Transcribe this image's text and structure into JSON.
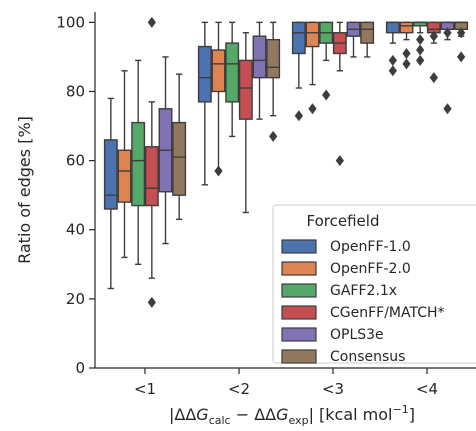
{
  "chart_data": {
    "type": "box",
    "xlabel_parts": {
      "pre": "|ΔΔ",
      "g": "G",
      "calc": "calc",
      "mid": " − ΔΔ",
      "exp": "exp",
      "post": "| [kcal mol",
      "sup": "−1",
      "close": "]"
    },
    "ylabel": "Ratio of edges [%]",
    "ylim": [
      0,
      103
    ],
    "yticks": [
      0,
      20,
      40,
      60,
      80,
      100
    ],
    "categories": [
      "<1",
      "<2",
      "<3",
      "<4"
    ],
    "legend": {
      "title": "Forcefield",
      "placement": "lower-right"
    },
    "series": [
      {
        "name": "OpenFF-1.0",
        "color": "#4c72b0",
        "boxes": [
          {
            "wlo": 23,
            "q1": 46,
            "med": 50,
            "q3": 66,
            "whi": 78,
            "fliers": []
          },
          {
            "wlo": 53,
            "q1": 77,
            "med": 84,
            "q3": 93,
            "whi": 100,
            "fliers": []
          },
          {
            "wlo": 81,
            "q1": 91,
            "med": 97,
            "q3": 100,
            "whi": 100,
            "fliers": [
              73
            ]
          },
          {
            "wlo": 94,
            "q1": 97,
            "med": 100,
            "q3": 100,
            "whi": 100,
            "fliers": [
              86,
              89
            ]
          }
        ]
      },
      {
        "name": "OpenFF-2.0",
        "color": "#dd8452",
        "boxes": [
          {
            "wlo": 32,
            "q1": 48,
            "med": 57,
            "q3": 63,
            "whi": 86,
            "fliers": []
          },
          {
            "wlo": 57,
            "q1": 80,
            "med": 88,
            "q3": 92,
            "whi": 100,
            "fliers": [
              57
            ]
          },
          {
            "wlo": 82,
            "q1": 93,
            "med": 97,
            "q3": 100,
            "whi": 100,
            "fliers": [
              75
            ]
          },
          {
            "wlo": 95,
            "q1": 97,
            "med": 99,
            "q3": 100,
            "whi": 100,
            "fliers": [
              88,
              91
            ]
          }
        ]
      },
      {
        "name": "GAFF2.1x",
        "color": "#55a868",
        "boxes": [
          {
            "wlo": 30,
            "q1": 47,
            "med": 60,
            "q3": 71,
            "whi": 89,
            "fliers": []
          },
          {
            "wlo": 67,
            "q1": 77,
            "med": 88,
            "q3": 94,
            "whi": 100,
            "fliers": []
          },
          {
            "wlo": 89,
            "q1": 94,
            "med": 97,
            "q3": 100,
            "whi": 100,
            "fliers": [
              79
            ]
          },
          {
            "wlo": 97,
            "q1": 99,
            "med": 100,
            "q3": 100,
            "whi": 100,
            "fliers": [
              89,
              92,
              95
            ]
          }
        ]
      },
      {
        "name": "CGenFF/MATCH*",
        "color": "#c44e52",
        "boxes": [
          {
            "wlo": 26,
            "q1": 47,
            "med": 52,
            "q3": 64,
            "whi": 77,
            "fliers": [
              100,
              19
            ]
          },
          {
            "wlo": 45,
            "q1": 72,
            "med": 81,
            "q3": 89,
            "whi": 97,
            "fliers": []
          },
          {
            "wlo": 86,
            "q1": 91,
            "med": 94,
            "q3": 97,
            "whi": 100,
            "fliers": [
              60
            ]
          },
          {
            "wlo": 94,
            "q1": 97,
            "med": 98,
            "q3": 100,
            "whi": 100,
            "fliers": [
              84,
              96
            ]
          }
        ]
      },
      {
        "name": "OPLS3e",
        "color": "#8172b3",
        "boxes": [
          {
            "wlo": 36,
            "q1": 51,
            "med": 63,
            "q3": 75,
            "whi": 90,
            "fliers": []
          },
          {
            "wlo": 72,
            "q1": 84,
            "med": 89,
            "q3": 96,
            "whi": 100,
            "fliers": []
          },
          {
            "wlo": 90,
            "q1": 96,
            "med": 98,
            "q3": 100,
            "whi": 100,
            "fliers": []
          },
          {
            "wlo": 95,
            "q1": 98,
            "med": 100,
            "q3": 100,
            "whi": 100,
            "fliers": [
              75,
              97
            ]
          }
        ]
      },
      {
        "name": "Consensus",
        "color": "#937860",
        "boxes": [
          {
            "wlo": 43,
            "q1": 50,
            "med": 61,
            "q3": 71,
            "whi": 85,
            "fliers": []
          },
          {
            "wlo": 73,
            "q1": 84,
            "med": 87,
            "q3": 95,
            "whi": 100,
            "fliers": [
              67
            ]
          },
          {
            "wlo": 90,
            "q1": 94,
            "med": 98,
            "q3": 100,
            "whi": 100,
            "fliers": []
          },
          {
            "wlo": 96,
            "q1": 98,
            "med": 100,
            "q3": 100,
            "whi": 100,
            "fliers": [
              90,
              97
            ]
          }
        ]
      }
    ]
  }
}
